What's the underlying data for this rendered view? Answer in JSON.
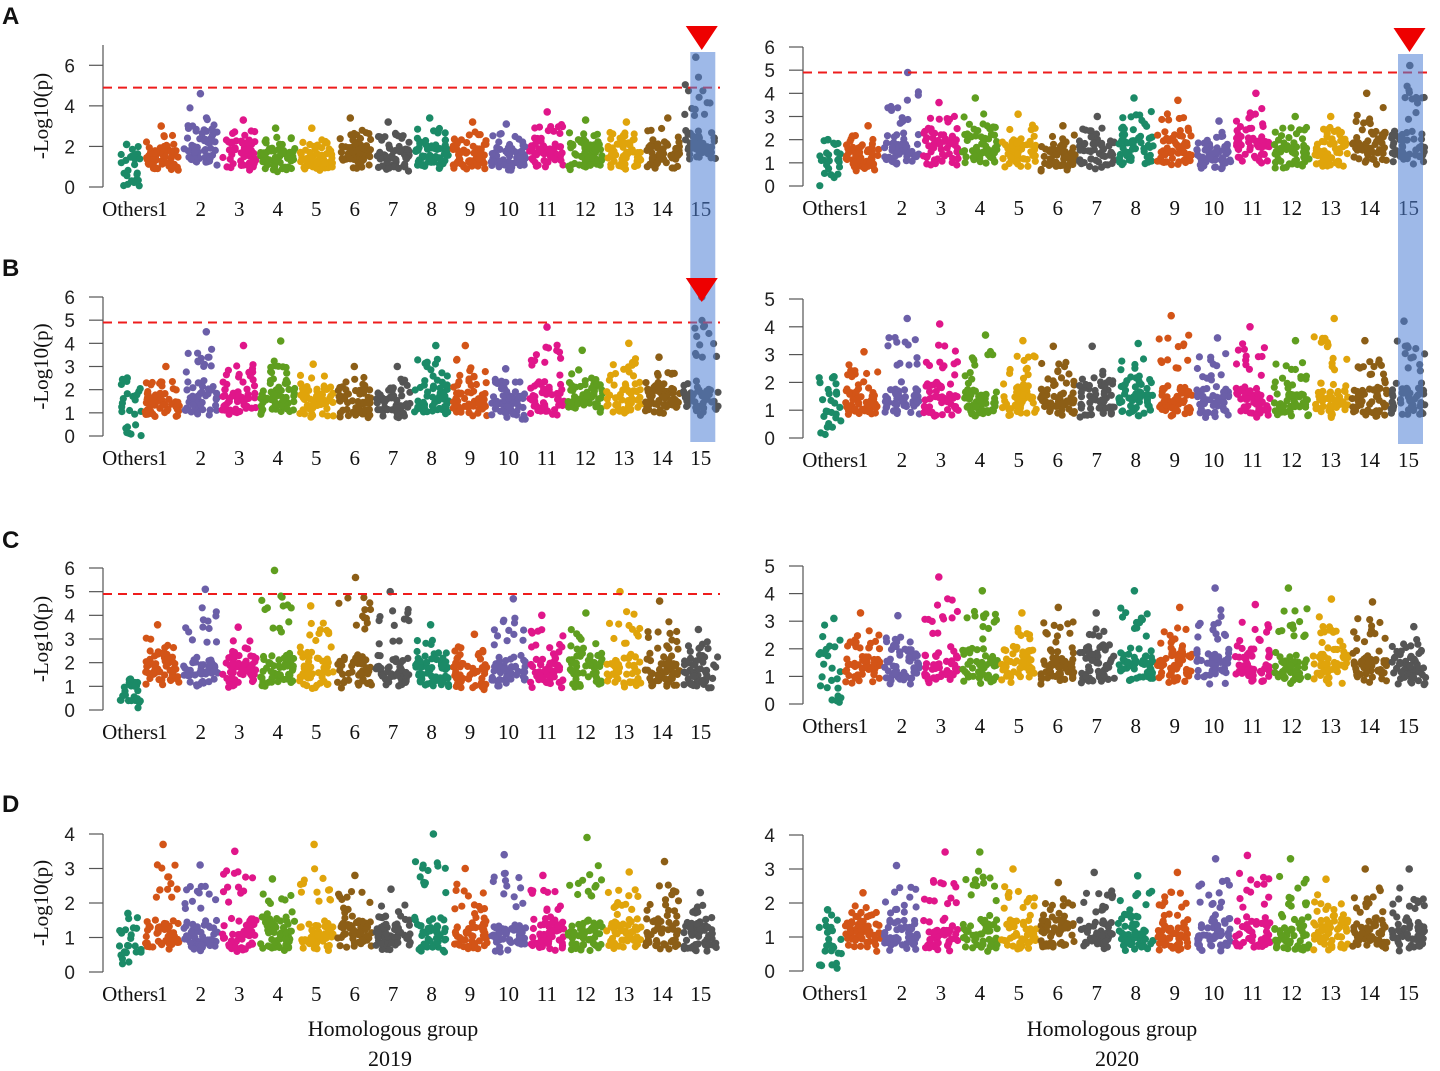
{
  "figure": {
    "x_axis_title": "Homologous group",
    "years": [
      "2019",
      "2020"
    ]
  },
  "colors": {
    "threshold": "#ee1c1c",
    "highlight": "#4f7fd6",
    "marker": "#ee0000",
    "axis": "#555555",
    "chromosomes": [
      "#1b8a67",
      "#d35417",
      "#6b5fa8",
      "#e0168a",
      "#5f9e1f",
      "#e0a40b",
      "#8c5e16",
      "#555555",
      "#1b8a67",
      "#d35417",
      "#6b5fa8",
      "#e0168a",
      "#5f9e1f",
      "#e0a40b",
      "#8c5e16",
      "#555555"
    ]
  },
  "chart_data": [
    {
      "panel": "A",
      "year": "2019",
      "type": "scatter",
      "ylabel": "-Log10(p)",
      "ylim": [
        0,
        7
      ],
      "yticks": [
        0,
        2,
        4,
        6
      ],
      "threshold": 4.9,
      "chromosomes": [
        "Others",
        "1",
        "2",
        "3",
        "4",
        "5",
        "6",
        "7",
        "8",
        "9",
        "10",
        "11",
        "12",
        "13",
        "14",
        "15"
      ],
      "chrom_peak": [
        2.1,
        3.0,
        4.6,
        3.3,
        2.9,
        2.9,
        3.4,
        3.2,
        3.4,
        3.2,
        3.1,
        3.7,
        3.3,
        3.2,
        3.4,
        6.4
      ],
      "highlight_chromosome": "15",
      "marker": true
    },
    {
      "panel": "A",
      "year": "2020",
      "type": "scatter",
      "ylabel": "",
      "ylim": [
        0,
        6
      ],
      "yticks": [
        0,
        1,
        2,
        3,
        4,
        5,
        6
      ],
      "threshold": 4.9,
      "chromosomes": [
        "Others",
        "1",
        "2",
        "3",
        "4",
        "5",
        "6",
        "7",
        "8",
        "9",
        "10",
        "11",
        "12",
        "13",
        "14",
        "15"
      ],
      "chrom_peak": [
        2.0,
        2.6,
        4.9,
        3.6,
        3.8,
        3.1,
        2.6,
        3.0,
        3.8,
        3.7,
        2.8,
        4.0,
        3.0,
        3.0,
        4.0,
        5.2
      ],
      "highlight_chromosome": "15",
      "marker": true
    },
    {
      "panel": "B",
      "year": "2019",
      "type": "scatter",
      "ylabel": "-Log10(p)",
      "ylim": [
        0,
        6
      ],
      "yticks": [
        0,
        1,
        2,
        3,
        4,
        5,
        6
      ],
      "threshold": 4.9,
      "chromosomes": [
        "Others",
        "1",
        "2",
        "3",
        "4",
        "5",
        "6",
        "7",
        "8",
        "9",
        "10",
        "11",
        "12",
        "13",
        "14",
        "15"
      ],
      "chrom_peak": [
        2.5,
        3.0,
        4.5,
        3.9,
        4.1,
        3.1,
        3.0,
        3.0,
        3.9,
        3.9,
        2.9,
        4.7,
        3.7,
        4.0,
        3.4,
        6.0
      ],
      "highlight_chromosome": "15",
      "marker": true
    },
    {
      "panel": "B",
      "year": "2020",
      "type": "scatter",
      "ylabel": "",
      "ylim": [
        0,
        5
      ],
      "yticks": [
        0,
        1,
        2,
        3,
        4,
        5
      ],
      "threshold": null,
      "chromosomes": [
        "Others",
        "1",
        "2",
        "3",
        "4",
        "5",
        "6",
        "7",
        "8",
        "9",
        "10",
        "11",
        "12",
        "13",
        "14",
        "15"
      ],
      "chrom_peak": [
        2.2,
        3.1,
        4.3,
        4.1,
        3.7,
        3.5,
        3.3,
        3.3,
        3.4,
        4.4,
        3.6,
        4.0,
        3.5,
        4.3,
        3.5,
        4.2
      ],
      "highlight_chromosome": "15",
      "marker": false
    },
    {
      "panel": "C",
      "year": "2019",
      "type": "scatter",
      "ylabel": "-Log10(p)",
      "ylim": [
        0,
        6
      ],
      "yticks": [
        0,
        1,
        2,
        3,
        4,
        5,
        6
      ],
      "threshold": 4.9,
      "chromosomes": [
        "Others",
        "1",
        "2",
        "3",
        "4",
        "5",
        "6",
        "7",
        "8",
        "9",
        "10",
        "11",
        "12",
        "13",
        "14",
        "15"
      ],
      "chrom_peak": [
        1.3,
        3.6,
        5.1,
        3.5,
        5.9,
        4.4,
        5.6,
        5.0,
        3.6,
        3.2,
        4.7,
        4.0,
        4.1,
        5.0,
        4.6,
        3.4
      ],
      "highlight_chromosome": null,
      "marker": false
    },
    {
      "panel": "C",
      "year": "2020",
      "type": "scatter",
      "ylabel": "",
      "ylim": [
        0,
        5
      ],
      "yticks": [
        0,
        1,
        2,
        3,
        4,
        5
      ],
      "threshold": null,
      "chromosomes": [
        "Others",
        "1",
        "2",
        "3",
        "4",
        "5",
        "6",
        "7",
        "8",
        "9",
        "10",
        "11",
        "12",
        "13",
        "14",
        "15"
      ],
      "chrom_peak": [
        3.1,
        3.3,
        3.2,
        4.6,
        4.1,
        3.3,
        3.5,
        3.3,
        4.1,
        3.5,
        4.2,
        3.6,
        4.2,
        3.8,
        3.7,
        2.8
      ],
      "highlight_chromosome": null,
      "marker": false
    },
    {
      "panel": "D",
      "year": "2019",
      "type": "scatter",
      "ylabel": "-Log10(p)",
      "ylim": [
        0,
        4
      ],
      "yticks": [
        0,
        1,
        2,
        3,
        4
      ],
      "threshold": null,
      "chromosomes": [
        "Others",
        "1",
        "2",
        "3",
        "4",
        "5",
        "6",
        "7",
        "8",
        "9",
        "10",
        "11",
        "12",
        "13",
        "14",
        "15"
      ],
      "chrom_peak": [
        1.7,
        3.7,
        3.1,
        3.5,
        2.7,
        3.7,
        2.8,
        2.4,
        4.0,
        3.0,
        3.4,
        2.8,
        3.9,
        2.9,
        3.2,
        2.3
      ],
      "highlight_chromosome": null,
      "marker": false
    },
    {
      "panel": "D",
      "year": "2020",
      "type": "scatter",
      "ylabel": "",
      "ylim": [
        0,
        4
      ],
      "yticks": [
        0,
        1,
        2,
        3,
        4
      ],
      "threshold": null,
      "chromosomes": [
        "Others",
        "1",
        "2",
        "3",
        "4",
        "5",
        "6",
        "7",
        "8",
        "9",
        "10",
        "11",
        "12",
        "13",
        "14",
        "15"
      ],
      "chrom_peak": [
        1.8,
        2.3,
        3.1,
        3.5,
        3.5,
        3.0,
        2.6,
        2.9,
        2.8,
        2.9,
        3.3,
        3.4,
        3.3,
        2.7,
        3.0,
        3.0
      ],
      "highlight_chromosome": null,
      "marker": false
    }
  ]
}
